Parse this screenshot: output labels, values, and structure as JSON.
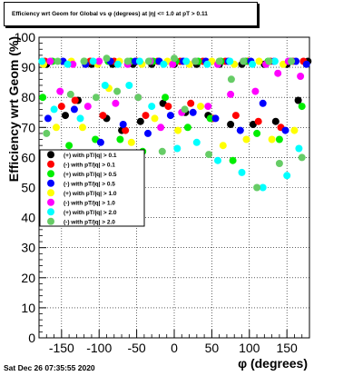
{
  "chart_data": {
    "type": "scatter",
    "title": "Efficiency wrt Geom for Global vs φ (degrees) at |η| <= 1.0 at pT > 0.11",
    "xlabel": "φ (degrees)",
    "ylabel": "Efficiency wrt Geom (%)",
    "xlim": [
      -180,
      180
    ],
    "ylim": [
      0,
      100
    ],
    "xticks": [
      -150,
      -100,
      -50,
      0,
      50,
      100,
      150
    ],
    "yticks": [
      0,
      10,
      20,
      30,
      40,
      50,
      60,
      70,
      80,
      90,
      100
    ],
    "grid": true,
    "legend_position": "center-left",
    "series": [
      {
        "name": "(+) with pT/|q| > 0.1",
        "color": "#000000",
        "x": [
          -170,
          -145,
          -128,
          -110,
          -90,
          -82,
          -70,
          -55,
          -45,
          -30,
          -15,
          0,
          15,
          30,
          45,
          60,
          75,
          90,
          105,
          120,
          135,
          150,
          165,
          178
        ],
        "y": [
          91,
          74,
          79,
          91,
          73,
          91,
          69,
          91,
          72,
          91,
          78,
          91,
          75,
          91,
          74,
          91,
          71,
          91,
          71,
          91,
          72,
          91,
          79,
          92
        ]
      },
      {
        "name": "(-) with pT/|q| > 0.1",
        "color": "#ff0000",
        "x": [
          -172,
          -150,
          -132,
          -112,
          -95,
          -80,
          -65,
          -50,
          -38,
          -22,
          -8,
          8,
          22,
          38,
          52,
          68,
          82,
          98,
          112,
          128,
          142,
          158,
          172
        ],
        "y": [
          92,
          77,
          79,
          92,
          74,
          92,
          69,
          92,
          74,
          92,
          77,
          92,
          78,
          92,
          73,
          92,
          74,
          92,
          72,
          92,
          70,
          92,
          92
        ]
      },
      {
        "name": "(+) with pT/|q| > 0.5",
        "color": "#00ee00",
        "x": [
          -175,
          -162,
          -140,
          -120,
          -105,
          -88,
          -72,
          -58,
          -42,
          -28,
          -12,
          2,
          18,
          32,
          48,
          62,
          78,
          95,
          110,
          125,
          140,
          155,
          170
        ],
        "y": [
          80,
          92,
          64,
          92,
          66,
          92,
          66,
          92,
          62,
          92,
          80,
          92,
          70,
          92,
          73,
          92,
          59,
          92,
          68,
          92,
          66,
          92,
          77
        ]
      },
      {
        "name": "(-) with pT/|q| > 0.5",
        "color": "#0000ff",
        "x": [
          -168,
          -148,
          -133,
          -118,
          -98,
          -85,
          -68,
          -52,
          -35,
          -20,
          -5,
          12,
          25,
          42,
          55,
          72,
          88,
          102,
          118,
          133,
          148,
          162,
          176
        ],
        "y": [
          73,
          92,
          76,
          91,
          65,
          92,
          71,
          92,
          68,
          92,
          74,
          92,
          75,
          92,
          73,
          92,
          69,
          92,
          78,
          92,
          69,
          92,
          91
        ]
      },
      {
        "name": "(+) with pT/|q| > 1.0",
        "color": "#ffff00",
        "x": [
          -174,
          -157,
          -137,
          -122,
          -102,
          -87,
          -73,
          -57,
          -43,
          -26,
          -9,
          5,
          20,
          35,
          50,
          65,
          80,
          96,
          113,
          130,
          145,
          160
        ],
        "y": [
          91,
          70,
          92,
          70,
          91,
          83,
          92,
          65,
          91,
          73,
          92,
          69,
          91,
          77,
          92,
          64,
          91,
          66,
          92,
          66,
          91,
          69
        ]
      },
      {
        "name": "(-) with pT/|q| > 1.0",
        "color": "#ff00ff",
        "x": [
          -165,
          -152,
          -135,
          -115,
          -100,
          -78,
          -62,
          -48,
          -32,
          -18,
          -2,
          10,
          28,
          45,
          58,
          75,
          92,
          108,
          122,
          138,
          152,
          168
        ],
        "y": [
          92,
          82,
          91,
          77,
          92,
          78,
          91,
          80,
          92,
          70,
          91,
          75,
          92,
          77,
          91,
          81,
          92,
          82,
          91,
          88,
          92,
          87
        ]
      },
      {
        "name": "(+) with pT/|q| > 2.0",
        "color": "#00ffff",
        "x": [
          -176,
          -160,
          -142,
          -125,
          -108,
          -92,
          -75,
          -60,
          -46,
          -30,
          -14,
          4,
          16,
          30,
          44,
          58,
          74,
          90,
          104,
          118,
          134,
          150,
          166
        ],
        "y": [
          92,
          76,
          91,
          73,
          92,
          84,
          91,
          84,
          92,
          77,
          91,
          63,
          92,
          65,
          91,
          59,
          92,
          55,
          91,
          50,
          92,
          54,
          63
        ]
      },
      {
        "name": "(-) with pT/|q| > 2.0",
        "color": "#66cc66",
        "x": [
          -170,
          -155,
          -138,
          -120,
          -104,
          -90,
          -76,
          -62,
          -48,
          -34,
          -16,
          0,
          14,
          28,
          46,
          60,
          76,
          92,
          110,
          126,
          140,
          156,
          170
        ],
        "y": [
          68,
          92,
          81,
          92,
          80,
          93,
          82,
          92,
          80,
          92,
          62,
          93,
          76,
          92,
          61,
          92,
          86,
          92,
          50,
          92,
          58,
          92,
          60
        ]
      }
    ]
  },
  "footer": {
    "timestamp": "Sat Dec 26 07:35:55 2020"
  }
}
